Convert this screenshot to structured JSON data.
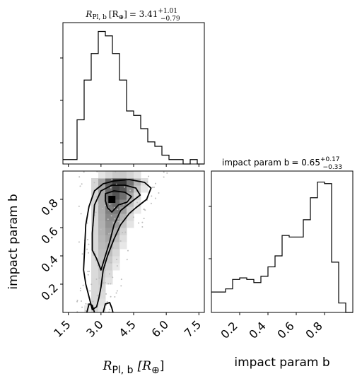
{
  "chart_data": {
    "type": "corner",
    "params": [
      {
        "name": "R_Pl_b",
        "range": [
          1.25,
          7.75
        ],
        "ticks": [
          1.5,
          3.0,
          4.5,
          6.0,
          7.5
        ],
        "tick_labels": [
          "1.5",
          "3.0",
          "4.5",
          "6.0",
          "7.5"
        ]
      },
      {
        "name": "impact_b",
        "range": [
          0.0,
          1.0
        ],
        "ticks": [
          0.2,
          0.4,
          0.6,
          0.8
        ],
        "tick_labels": [
          "0.2",
          "0.4",
          "0.6",
          "0.8"
        ]
      }
    ],
    "hist_R": {
      "title": {
        "lhs": "R",
        "sub": "Pl, b",
        "unit": "[R",
        "unit_sub": "⊕",
        "unit_close": "]",
        "eq": "= 3.41",
        "plus": "+1.01",
        "minus": "−0.79"
      },
      "bin_edges": [
        1.25,
        1.575,
        1.9,
        2.225,
        2.55,
        2.875,
        3.2,
        3.525,
        3.85,
        4.175,
        4.5,
        4.825,
        5.15,
        5.475,
        5.8,
        6.125,
        6.45,
        6.775,
        7.1,
        7.425,
        7.75
      ],
      "counts": [
        1,
        1,
        10,
        19,
        25,
        30,
        29,
        25,
        19,
        12,
        11,
        8,
        5,
        4,
        2,
        1,
        1,
        0,
        1,
        0
      ],
      "ymax": 32
    },
    "hist_b": {
      "title": {
        "lhs": "impact param b",
        "eq": "= 0.65",
        "plus": "+0.17",
        "minus": "−0.33"
      },
      "bin_edges": [
        0.0,
        0.05,
        0.1,
        0.15,
        0.2,
        0.25,
        0.3,
        0.35,
        0.4,
        0.45,
        0.5,
        0.55,
        0.6,
        0.65,
        0.7,
        0.75,
        0.8,
        0.85,
        0.9,
        0.95,
        1.0
      ],
      "counts": [
        13,
        13,
        15,
        21,
        22,
        21,
        19,
        23,
        29,
        36,
        49,
        48,
        48,
        59,
        73,
        83,
        82,
        32,
        6,
        0
      ],
      "ymax": 90
    },
    "density_2d": {
      "x_edges": [
        1.25,
        1.575,
        1.9,
        2.225,
        2.55,
        2.875,
        3.2,
        3.525,
        3.85,
        4.175,
        4.5,
        4.825,
        5.15,
        5.475,
        5.8,
        6.125,
        6.45,
        6.775,
        7.1,
        7.425,
        7.75
      ],
      "y_edges": [
        0.0,
        0.05,
        0.1,
        0.15,
        0.2,
        0.25,
        0.3,
        0.35,
        0.4,
        0.45,
        0.5,
        0.55,
        0.6,
        0.65,
        0.7,
        0.75,
        0.8,
        0.85,
        0.9,
        0.95,
        1.0
      ],
      "peak_x": 3.5,
      "peak_y": 0.8
    },
    "contours": [
      {
        "level": "inner",
        "points": [
          [
            3.2,
            0.84
          ],
          [
            3.6,
            0.86
          ],
          [
            4.1,
            0.85
          ],
          [
            4.4,
            0.82
          ],
          [
            4.2,
            0.78
          ],
          [
            3.8,
            0.76
          ],
          [
            3.5,
            0.71
          ],
          [
            3.3,
            0.74
          ],
          [
            3.2,
            0.79
          ]
        ]
      },
      {
        "level": "mid",
        "points": [
          [
            2.6,
            0.56
          ],
          [
            2.7,
            0.76
          ],
          [
            3.0,
            0.86
          ],
          [
            3.5,
            0.9
          ],
          [
            4.1,
            0.9
          ],
          [
            4.6,
            0.88
          ],
          [
            4.8,
            0.83
          ],
          [
            4.3,
            0.77
          ],
          [
            3.9,
            0.72
          ],
          [
            3.6,
            0.62
          ],
          [
            3.4,
            0.5
          ],
          [
            3.2,
            0.4
          ],
          [
            3.0,
            0.3
          ],
          [
            2.8,
            0.38
          ],
          [
            2.6,
            0.44
          ]
        ]
      },
      {
        "level": "outer",
        "points": [
          [
            2.2,
            0.3
          ],
          [
            2.3,
            0.62
          ],
          [
            2.45,
            0.75
          ],
          [
            2.7,
            0.86
          ],
          [
            3.1,
            0.91
          ],
          [
            3.6,
            0.93
          ],
          [
            4.3,
            0.94
          ],
          [
            5.0,
            0.92
          ],
          [
            5.3,
            0.88
          ],
          [
            5.1,
            0.8
          ],
          [
            4.6,
            0.74
          ],
          [
            4.3,
            0.7
          ],
          [
            3.9,
            0.62
          ],
          [
            3.6,
            0.52
          ],
          [
            3.3,
            0.4
          ],
          [
            3.1,
            0.3
          ],
          [
            3.0,
            0.18
          ],
          [
            2.9,
            0.1
          ],
          [
            2.8,
            0.04
          ],
          [
            2.6,
            0.02
          ],
          [
            2.5,
            0.08
          ],
          [
            2.4,
            0.14
          ],
          [
            2.3,
            0.2
          ]
        ]
      },
      {
        "level": "base-left",
        "points": [
          [
            2.35,
            0.0
          ],
          [
            2.45,
            0.06
          ],
          [
            2.6,
            0.05
          ],
          [
            2.7,
            0.0
          ]
        ]
      },
      {
        "level": "base-right",
        "points": [
          [
            3.1,
            0.0
          ],
          [
            3.2,
            0.06
          ],
          [
            3.4,
            0.07
          ],
          [
            3.5,
            0.03
          ],
          [
            3.55,
            0.0
          ]
        ]
      }
    ],
    "xlabel": {
      "main": "R",
      "sub": "Pl, b",
      "unit_open": "[R",
      "unit_sub": "⊕",
      "unit_close": "]"
    },
    "ylabel": "impact param b",
    "xlabel_b": "impact param b"
  }
}
